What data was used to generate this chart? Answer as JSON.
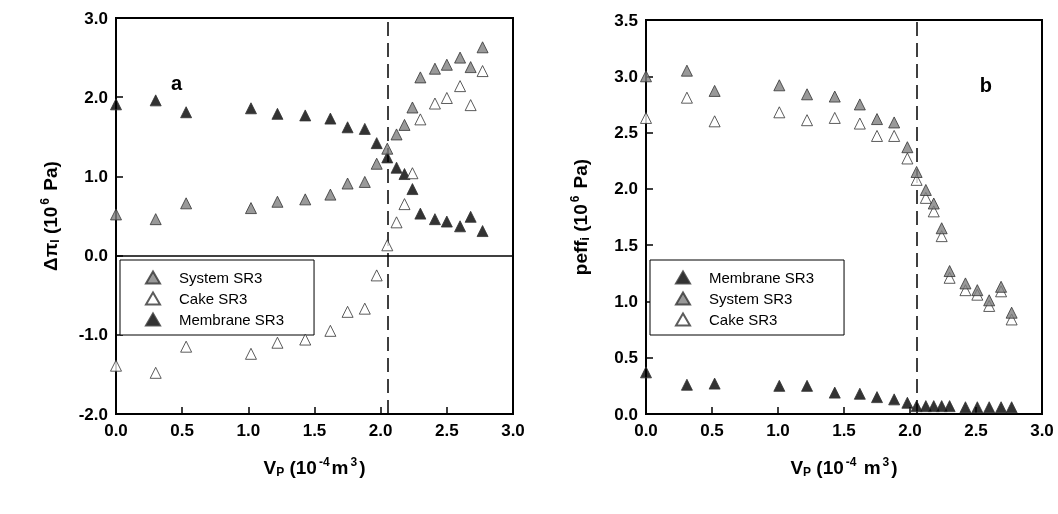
{
  "chart_data": [
    {
      "type": "scatter",
      "title": "a",
      "xlabel": "V$_{P}$ (10$^{-4}$m$^{3}$)",
      "ylabel": "Δπ$_{I}$ (10$^{6}$ Pa)",
      "x": [
        0,
        0.3,
        0.53,
        1.02,
        1.22,
        1.43,
        1.62,
        1.75,
        1.88,
        1.97,
        2.05,
        2.12,
        2.18,
        2.24,
        2.3,
        2.41,
        2.5,
        2.6,
        2.68,
        2.77
      ],
      "series": [
        {
          "name": "System SR3",
          "color": "#808080",
          "values": [
            0.52,
            0.46,
            0.66,
            0.6,
            0.68,
            0.71,
            0.77,
            0.91,
            0.93,
            1.16,
            1.35,
            1.53,
            1.65,
            1.87,
            2.25,
            2.36,
            2.41,
            2.5,
            2.38,
            2.63
          ]
        },
        {
          "name": "Cake SR3",
          "color": "#ffffff",
          "values": [
            -1.39,
            -1.48,
            -1.15,
            -1.24,
            -1.1,
            -1.06,
            -0.95,
            -0.71,
            -0.67,
            -0.25,
            0.13,
            0.42,
            0.65,
            1.04,
            1.72,
            1.92,
            1.99,
            2.14,
            1.9,
            2.33
          ]
        },
        {
          "name": "Membrane SR3",
          "color": "#000000",
          "values": [
            1.91,
            1.96,
            1.81,
            1.86,
            1.79,
            1.77,
            1.73,
            1.62,
            1.6,
            1.42,
            1.24,
            1.11,
            1.03,
            0.84,
            0.53,
            0.46,
            0.43,
            0.37,
            0.49,
            0.31
          ]
        }
      ],
      "xlim": [
        0,
        3
      ],
      "xticks": [
        {
          "value": 0,
          "label": "0.0"
        },
        0.5,
        {
          "value": 1,
          "label": "1.0"
        },
        1.5,
        {
          "value": 2,
          "label": "2.0"
        },
        2.5,
        {
          "value": 3,
          "label": "3.0"
        }
      ],
      "ylim": [
        -2,
        3
      ],
      "yticks": [
        {
          "value": -2,
          "label": "-2.0"
        },
        {
          "value": -1,
          "label": "-1.0"
        },
        {
          "value": 0,
          "label": "0.0"
        },
        {
          "value": 1,
          "label": "1.0"
        },
        {
          "value": 2,
          "label": "2.0"
        },
        {
          "value": 3,
          "label": "3.0"
        }
      ],
      "ref_lines": [
        {
          "axis": "y",
          "value": 0,
          "color": "#000000",
          "line_style": "solid"
        },
        {
          "axis": "x",
          "value": 2.05,
          "color": "#000000",
          "line_style": "dashed"
        }
      ],
      "marker": "triangle",
      "legend": "bottom left",
      "grid": false
    },
    {
      "type": "scatter",
      "title": "b",
      "xlabel": "V$_{P}$ (10$^{-4}$ m$^{3}$)",
      "ylabel": "peff$_{i}$ (10$^{6}$ Pa)",
      "x": [
        0,
        0.31,
        0.52,
        1.01,
        1.22,
        1.43,
        1.62,
        1.75,
        1.88,
        1.98,
        2.05,
        2.12,
        2.18,
        2.24,
        2.3,
        2.42,
        2.51,
        2.6,
        2.69,
        2.77
      ],
      "series": [
        {
          "name": "Membrane SR3",
          "color": "#000000",
          "values": [
            0.37,
            0.26,
            0.27,
            0.25,
            0.25,
            0.19,
            0.18,
            0.15,
            0.13,
            0.1,
            0.07,
            0.07,
            0.07,
            0.07,
            0.07,
            0.06,
            0.06,
            0.06,
            0.06,
            0.06
          ]
        },
        {
          "name": "System SR3",
          "color": "#808080",
          "values": [
            3.0,
            3.05,
            2.87,
            2.92,
            2.84,
            2.82,
            2.75,
            2.62,
            2.59,
            2.37,
            2.15,
            1.99,
            1.87,
            1.65,
            1.27,
            1.16,
            1.1,
            1.01,
            1.13,
            0.9
          ]
        },
        {
          "name": "Cake SR3",
          "color": "#ffffff",
          "values": [
            2.63,
            2.81,
            2.6,
            2.68,
            2.61,
            2.63,
            2.58,
            2.47,
            2.47,
            2.27,
            2.08,
            1.92,
            1.8,
            1.58,
            1.21,
            1.1,
            1.06,
            0.96,
            1.09,
            0.84
          ]
        }
      ],
      "xlim": [
        0,
        3
      ],
      "xticks": [
        {
          "value": 0,
          "label": "0.0"
        },
        0.5,
        {
          "value": 1,
          "label": "1.0"
        },
        1.5,
        {
          "value": 2,
          "label": "2.0"
        },
        2.5,
        {
          "value": 3,
          "label": "3.0"
        }
      ],
      "ylim": [
        0,
        3.5
      ],
      "yticks": [
        {
          "value": 0,
          "label": "0.0"
        },
        0.5,
        {
          "value": 1,
          "label": "1.0"
        },
        1.5,
        {
          "value": 2,
          "label": "2.0"
        },
        2.5,
        {
          "value": 3,
          "label": "3.0"
        },
        3.5
      ],
      "ref_lines": [
        {
          "axis": "x",
          "value": 2.05,
          "color": "#000000",
          "line_style": "dashed"
        }
      ],
      "marker": "triangle",
      "legend": "bottom left",
      "grid": false
    }
  ]
}
